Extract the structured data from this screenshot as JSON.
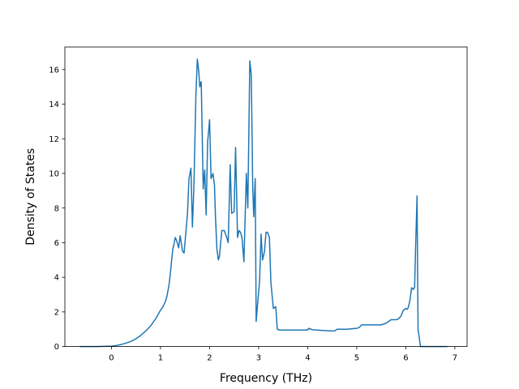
{
  "chart_data": {
    "type": "line",
    "xlabel": "Frequency (THz)",
    "ylabel": "Density of States",
    "xlim": [
      -0.95,
      7.25
    ],
    "ylim": [
      0,
      17.3
    ],
    "xticks": [
      0,
      1,
      2,
      3,
      4,
      5,
      6,
      7
    ],
    "yticks": [
      0,
      2,
      4,
      6,
      8,
      10,
      12,
      14,
      16
    ],
    "grid": false,
    "line_color": "#1f77b4",
    "series": [
      {
        "x": [
          -0.65,
          -0.3,
          0,
          0.1,
          0.2,
          0.3,
          0.4,
          0.5,
          0.6,
          0.7,
          0.8,
          0.9,
          0.95,
          1.0,
          1.05,
          1.1,
          1.13,
          1.17,
          1.2,
          1.22,
          1.25,
          1.28,
          1.3,
          1.33,
          1.37,
          1.4,
          1.45,
          1.48,
          1.52,
          1.55,
          1.58,
          1.62,
          1.65,
          1.68,
          1.72,
          1.75,
          1.78,
          1.8,
          1.83,
          1.87,
          1.9,
          1.93,
          1.96,
          2.0,
          2.03,
          2.07,
          2.1,
          2.12,
          2.15,
          2.18,
          2.2,
          2.25,
          2.3,
          2.35,
          2.38,
          2.42,
          2.45,
          2.5,
          2.53,
          2.57,
          2.6,
          2.63,
          2.66,
          2.7,
          2.75,
          2.78,
          2.82,
          2.85,
          2.88,
          2.9,
          2.93,
          2.95,
          2.98,
          3.02,
          3.05,
          3.08,
          3.12,
          3.15,
          3.18,
          3.22,
          3.25,
          3.3,
          3.35,
          3.38,
          3.42,
          3.45,
          3.5,
          3.6,
          3.8,
          4.0,
          4.02,
          4.1,
          4.3,
          4.5,
          4.55,
          4.6,
          4.8,
          5.0,
          5.05,
          5.1,
          5.2,
          5.3,
          5.4,
          5.5,
          5.6,
          5.7,
          5.75,
          5.8,
          5.85,
          5.9,
          5.95,
          6.0,
          6.03,
          6.05,
          6.08,
          6.12,
          6.15,
          6.18,
          6.2,
          6.23,
          6.25,
          6.3,
          6.85
        ],
        "y": [
          0,
          0,
          0.02,
          0.06,
          0.12,
          0.2,
          0.3,
          0.45,
          0.65,
          0.9,
          1.2,
          1.6,
          1.85,
          2.1,
          2.3,
          2.6,
          2.9,
          3.5,
          4.2,
          4.8,
          5.6,
          6.0,
          6.3,
          6.1,
          5.7,
          6.4,
          5.5,
          5.4,
          6.7,
          7.7,
          9.7,
          10.3,
          6.9,
          9.2,
          14.4,
          16.6,
          15.9,
          15.0,
          15.3,
          9.1,
          10.2,
          7.6,
          11.8,
          13.1,
          9.7,
          10.0,
          9.3,
          7.5,
          5.6,
          5.0,
          5.2,
          6.7,
          6.7,
          6.3,
          6.0,
          10.5,
          7.7,
          7.8,
          11.5,
          6.3,
          6.7,
          6.6,
          6.3,
          4.9,
          10.0,
          8.0,
          16.5,
          15.7,
          9.2,
          7.5,
          9.7,
          1.45,
          2.5,
          3.8,
          6.5,
          5.0,
          5.5,
          6.6,
          6.6,
          6.3,
          3.7,
          2.2,
          2.3,
          1.0,
          0.95,
          0.95,
          0.95,
          0.95,
          0.95,
          0.95,
          1.05,
          0.97,
          0.93,
          0.9,
          0.9,
          1.0,
          1.0,
          1.05,
          1.1,
          1.25,
          1.25,
          1.25,
          1.25,
          1.25,
          1.35,
          1.55,
          1.55,
          1.55,
          1.6,
          1.75,
          2.1,
          2.2,
          2.15,
          2.25,
          2.6,
          3.4,
          3.3,
          3.4,
          5.7,
          8.7,
          1.0,
          0,
          0
        ]
      }
    ]
  }
}
